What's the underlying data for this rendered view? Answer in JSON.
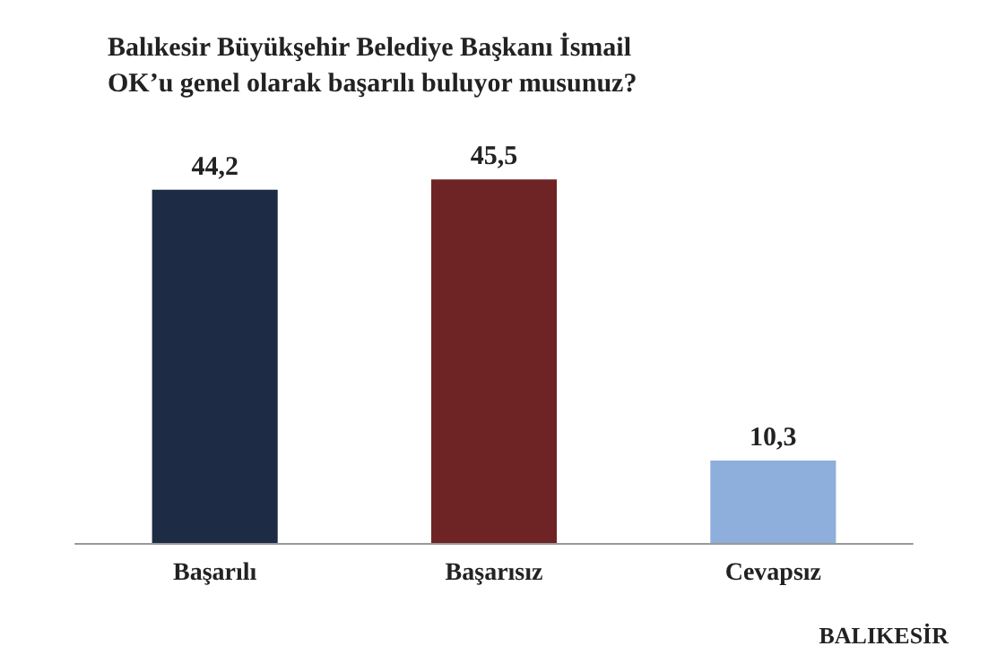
{
  "chart_data": {
    "type": "bar",
    "title": "Balıkesir Büyükşehir Belediye Başkanı İsmail OK’u genel olarak başarılı buluyor musunuz?",
    "categories": [
      "Başarılı",
      "Başarısız",
      "Cevapsız"
    ],
    "values": [
      44.2,
      45.5,
      10.3
    ],
    "colors": [
      "#1e2b45",
      "#6e2424",
      "#8eaedb"
    ],
    "value_labels": [
      "44,2",
      "45,5",
      "10,3"
    ],
    "annotations": [
      "BALIKESİR"
    ]
  }
}
